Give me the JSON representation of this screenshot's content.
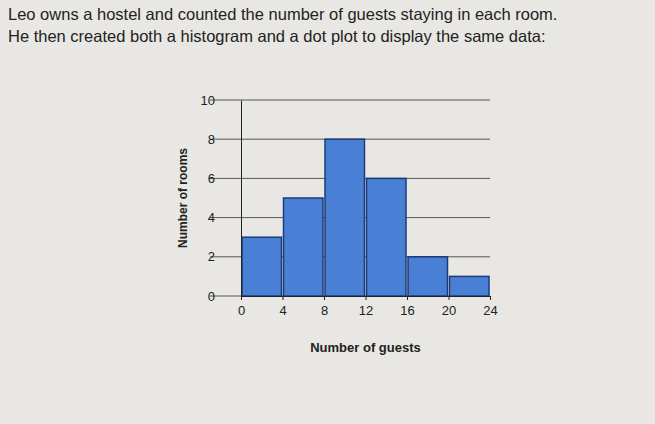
{
  "intro": [
    "Leo owns a hostel and counted the number of guests staying in each room.",
    "He then created both a histogram and a dot plot to display the same data:"
  ],
  "chart_data": {
    "type": "histogram",
    "bins": [
      0,
      4,
      8,
      12,
      16,
      20,
      24
    ],
    "values": [
      3,
      5,
      8,
      6,
      2,
      1
    ],
    "x_label": "Number of guests",
    "y_label": "Number of rooms",
    "color": "#4a7fd6",
    "xlim": [
      0,
      24
    ],
    "xticks": [
      0,
      4,
      8,
      12,
      16,
      20,
      24
    ],
    "ylim": [
      0,
      10
    ],
    "yticks": [
      0,
      2,
      4,
      6,
      8,
      10
    ],
    "grid": true
  }
}
